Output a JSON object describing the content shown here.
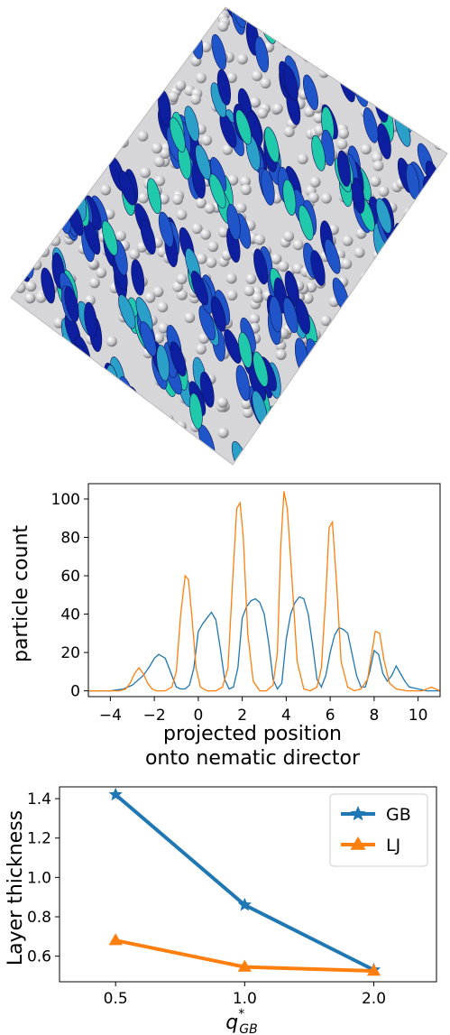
{
  "simulation_image": {
    "colors": {
      "background": "#ffffff",
      "gb_dark": "#0d1f9e",
      "gb_mid": "#1f55c8",
      "gb_light": "#2aa0c8",
      "gb_teal": "#1fc9a9",
      "lj_sphere": "#c8c8cc",
      "box_line": "#bbbbbb"
    }
  },
  "chart_data": [
    {
      "type": "line",
      "title": "",
      "xlabel": "projected position\nonto nematic director",
      "xlabel_lines": [
        "projected position",
        "onto nematic director"
      ],
      "ylabel": "particle count",
      "xlim": [
        -5,
        11
      ],
      "ylim": [
        -3,
        108
      ],
      "xticks": [
        -4,
        -2,
        0,
        2,
        4,
        6,
        8,
        10
      ],
      "xtick_labels": [
        "−4",
        "−2",
        "0",
        "2",
        "4",
        "6",
        "8",
        "10"
      ],
      "yticks": [
        0,
        20,
        40,
        60,
        80,
        100
      ],
      "ytick_labels": [
        "0",
        "20",
        "40",
        "60",
        "80",
        "100"
      ],
      "grid": false,
      "legend": "none",
      "series": [
        {
          "color": "#1f77b4",
          "x": [
            -5,
            -4,
            -3.4,
            -3,
            -2.5,
            -2.2,
            -2.0,
            -1.8,
            -1.5,
            -1.2,
            -1.0,
            -0.8,
            -0.6,
            -0.4,
            -0.2,
            0.0,
            0.2,
            0.4,
            0.6,
            0.8,
            1.0,
            1.2,
            1.4,
            1.6,
            1.8,
            2.0,
            2.2,
            2.4,
            2.6,
            2.8,
            3.0,
            3.2,
            3.4,
            3.6,
            3.8,
            4.0,
            4.2,
            4.4,
            4.6,
            4.8,
            5.0,
            5.2,
            5.4,
            5.6,
            5.8,
            6.0,
            6.2,
            6.4,
            6.6,
            6.8,
            7.0,
            7.2,
            7.4,
            7.6,
            7.8,
            8.0,
            8.2,
            8.4,
            8.6,
            8.8,
            9.0,
            9.2,
            9.4,
            9.6,
            10.0,
            10.4,
            10.8,
            11
          ],
          "y": [
            0,
            0,
            1,
            3,
            8,
            13,
            17,
            19,
            17,
            8,
            2,
            1,
            1,
            3,
            12,
            31,
            35,
            38,
            41,
            37,
            22,
            6,
            1,
            2,
            12,
            38,
            44,
            47,
            48,
            46,
            40,
            25,
            6,
            1,
            4,
            27,
            40,
            46,
            49,
            48,
            40,
            24,
            6,
            2,
            8,
            20,
            29,
            33,
            32,
            30,
            19,
            8,
            2,
            2,
            10,
            21,
            19,
            9,
            5,
            8,
            13,
            9,
            5,
            2,
            1,
            0,
            0,
            0
          ]
        },
        {
          "color": "#ff7f0e",
          "x": [
            -5,
            -3.6,
            -3.3,
            -3.1,
            -2.9,
            -2.7,
            -2.5,
            -2.3,
            -2.1,
            -1.9,
            -1.7,
            -1.5,
            -1.2,
            -1.0,
            -0.8,
            -0.6,
            -0.45,
            -0.3,
            -0.1,
            0.1,
            0.4,
            0.8,
            1.1,
            1.35,
            1.55,
            1.75,
            1.9,
            2.05,
            2.25,
            2.5,
            2.8,
            3.1,
            3.4,
            3.6,
            3.75,
            3.9,
            4.05,
            4.25,
            4.5,
            4.8,
            5.1,
            5.4,
            5.6,
            5.8,
            5.95,
            6.1,
            6.3,
            6.5,
            6.8,
            7.1,
            7.4,
            7.7,
            7.9,
            8.05,
            8.25,
            8.45,
            8.7,
            9.0,
            9.5,
            10.2,
            10.6,
            11
          ],
          "y": [
            0,
            0,
            1,
            4,
            9,
            12,
            9,
            4,
            1,
            0,
            0,
            0,
            2,
            10,
            40,
            60,
            58,
            40,
            12,
            2,
            0,
            0,
            2,
            12,
            55,
            95,
            98,
            80,
            30,
            5,
            0,
            0,
            3,
            20,
            75,
            104,
            95,
            60,
            15,
            1,
            0,
            2,
            12,
            50,
            85,
            88,
            55,
            15,
            2,
            0,
            1,
            6,
            20,
            31,
            30,
            16,
            4,
            1,
            0,
            0,
            2,
            0
          ]
        }
      ]
    },
    {
      "type": "line",
      "title": "",
      "xlabel": "q*_GB",
      "xlabel_parts": {
        "base": "q",
        "sup": "*",
        "sub": "GB"
      },
      "ylabel": "Layer thickness",
      "xscale": "log",
      "xlim": [
        0.37,
        2.8
      ],
      "ylim": [
        0.47,
        1.46
      ],
      "xticks": [
        0.5,
        1.0,
        2.0
      ],
      "xtick_labels": [
        "0.5",
        "1.0",
        "2.0"
      ],
      "yticks": [
        0.6,
        0.8,
        1.0,
        1.2,
        1.4
      ],
      "ytick_labels": [
        "0.6",
        "0.8",
        "1.0",
        "1.2",
        "1.4"
      ],
      "grid": false,
      "legend": "top-right",
      "series": [
        {
          "name": "GB",
          "marker": "star",
          "color": "#1f77b4",
          "x": [
            0.5,
            1.0,
            2.0
          ],
          "y": [
            1.42,
            0.86,
            0.53
          ]
        },
        {
          "name": "LJ",
          "marker": "triangle",
          "color": "#ff7f0e",
          "x": [
            0.5,
            1.0,
            2.0
          ],
          "y": [
            0.68,
            0.545,
            0.525
          ]
        }
      ]
    }
  ]
}
